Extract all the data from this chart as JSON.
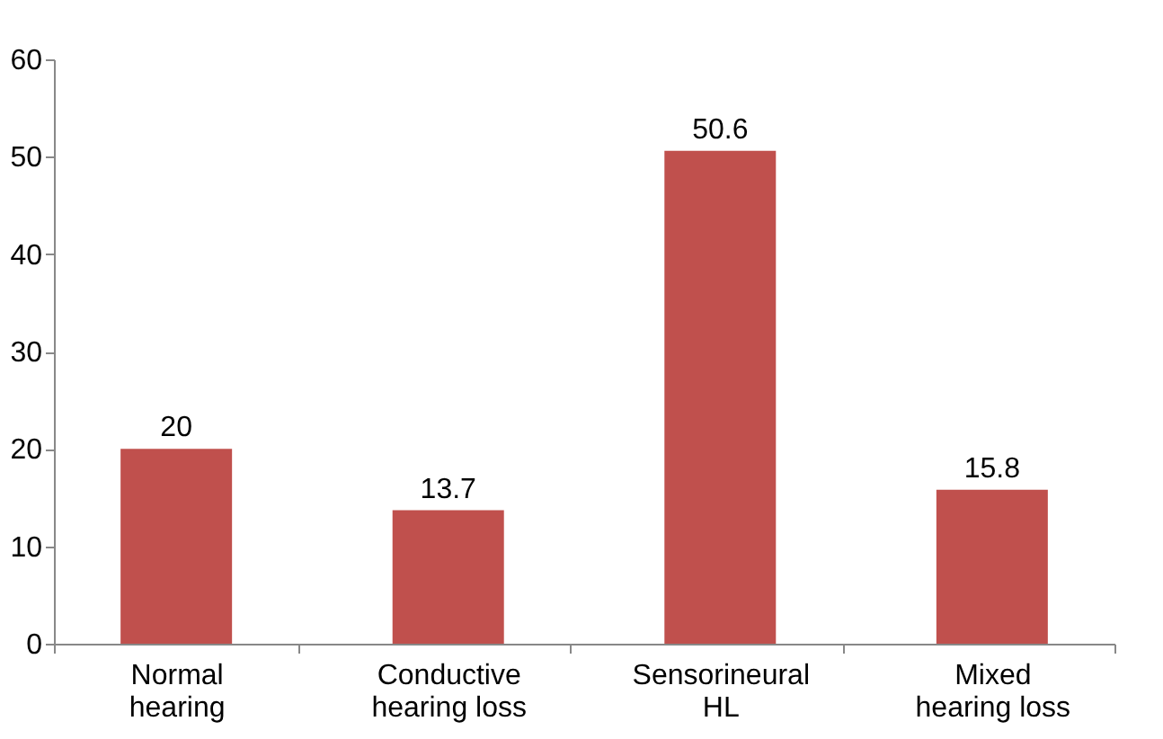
{
  "chart_data": {
    "type": "bar",
    "categories": [
      "Normal hearing",
      "Conductive hearing loss",
      "Sensorineural HL",
      "Mixed hearing loss"
    ],
    "values": [
      20,
      13.7,
      50.6,
      15.8
    ],
    "color": "#c0504d",
    "ylim": [
      0,
      60
    ],
    "yticks": [
      0,
      10,
      20,
      30,
      40,
      50,
      60
    ],
    "grid": false,
    "data_labels": true
  }
}
